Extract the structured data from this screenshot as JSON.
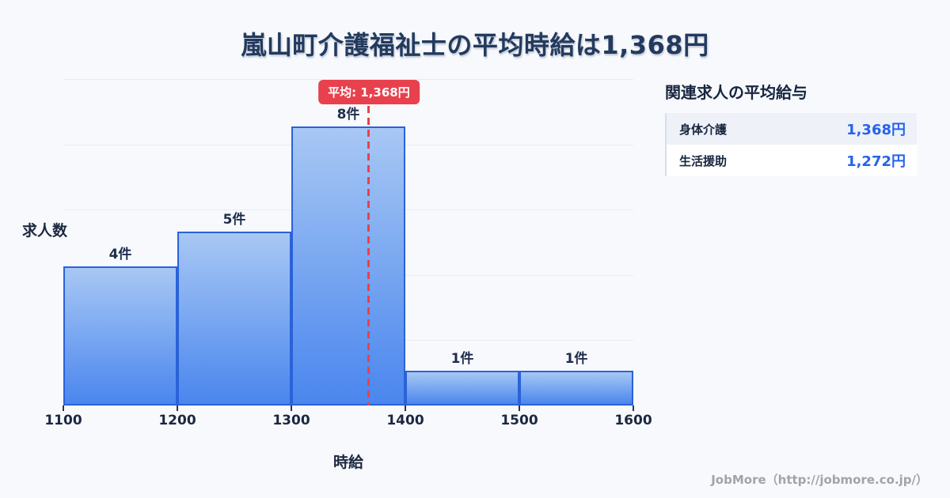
{
  "title": "嵐山町介護福祉士の平均時給は1,368円",
  "colors": {
    "background": "#f7f9fc",
    "title_text": "#233a5e",
    "bar_border": "#2a62d9",
    "bar_fill_top": "#a8c8f4",
    "bar_fill_bottom": "#4a86ee",
    "average_red": "#e8414e",
    "value_blue": "#2563eb",
    "row_alt_bg": "#eef2f8",
    "footer_gray": "#9fa4ac"
  },
  "chart_data": {
    "type": "bar",
    "title": "嵐山町介護福祉士の平均時給は1,368円",
    "xlabel": "時給",
    "ylabel": "求人数",
    "xlim": [
      1100,
      1600
    ],
    "x_ticks": [
      1100,
      1200,
      1300,
      1400,
      1500,
      1600
    ],
    "grid": true,
    "bins": [
      {
        "range": [
          1100,
          1200
        ],
        "count": 4,
        "count_label": "4件"
      },
      {
        "range": [
          1200,
          1300
        ],
        "count": 5,
        "count_label": "5件"
      },
      {
        "range": [
          1300,
          1400
        ],
        "count": 8,
        "count_label": "8件"
      },
      {
        "range": [
          1400,
          1500
        ],
        "count": 1,
        "count_label": "1件"
      },
      {
        "range": [
          1500,
          1600
        ],
        "count": 1,
        "count_label": "1件"
      }
    ],
    "average": {
      "value": 1368,
      "label": "平均: 1,368円"
    }
  },
  "side_panel": {
    "heading": "関連求人の平均給与",
    "rows": [
      {
        "label": "身体介護",
        "value": "1,368円"
      },
      {
        "label": "生活援助",
        "value": "1,272円"
      }
    ]
  },
  "footer": {
    "credit": "JobMore（http://jobmore.co.jp/）"
  }
}
